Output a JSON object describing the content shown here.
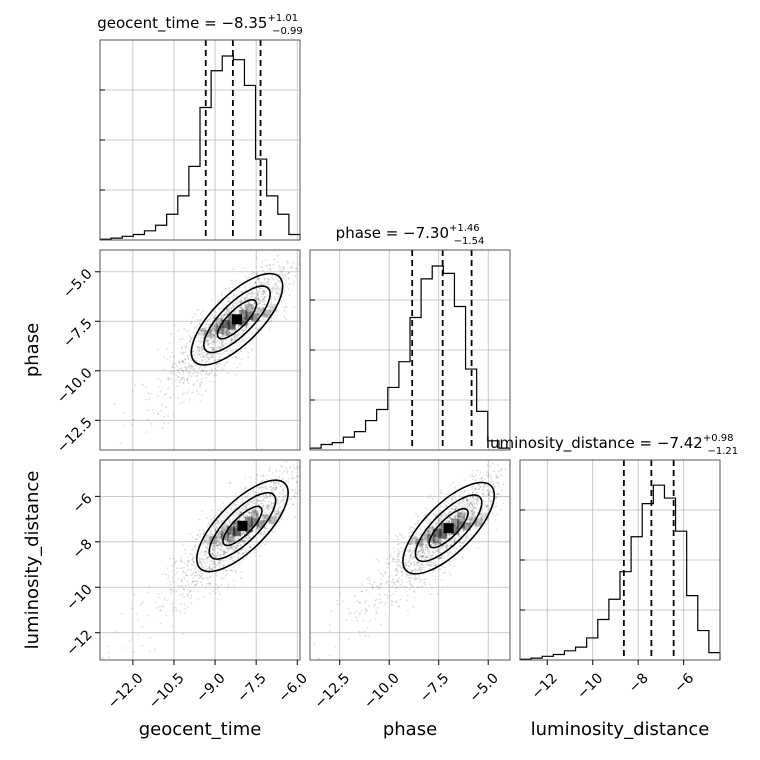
{
  "chart_data": {
    "type": "corner",
    "parameters": [
      {
        "name": "geocent_time",
        "median": -8.35,
        "plus": "+1.01",
        "minus": "−0.99",
        "median_label": "−8.35",
        "range": [
          -13.2,
          -5.9
        ],
        "q16": -9.34,
        "q84": -7.34,
        "ticks": [
          {
            "v": -12.0,
            "l": "−12.0"
          },
          {
            "v": -10.5,
            "l": "−10.5"
          },
          {
            "v": -9.0,
            "l": "−9.0"
          },
          {
            "v": -7.5,
            "l": "−7.5"
          },
          {
            "v": -6.0,
            "l": "−6.0"
          }
        ],
        "hist": [
          0.004,
          0.01,
          0.02,
          0.03,
          0.05,
          0.08,
          0.14,
          0.24,
          0.4,
          0.72,
          0.92,
          1.0,
          0.98,
          0.84,
          0.44,
          0.24,
          0.14,
          0.03
        ]
      },
      {
        "name": "phase",
        "median": -7.3,
        "plus": "+1.46",
        "minus": "−1.54",
        "median_label": "−7.30",
        "range": [
          -14.0,
          -3.9
        ],
        "q16": -8.84,
        "q84": -5.84,
        "ticks": [
          {
            "v": -12.5,
            "l": "−12.5"
          },
          {
            "v": -10.0,
            "l": "−10.0"
          },
          {
            "v": -7.5,
            "l": "−7.5"
          },
          {
            "v": -5.0,
            "l": "−5.0"
          }
        ],
        "hist": [
          0.01,
          0.03,
          0.04,
          0.07,
          0.1,
          0.16,
          0.22,
          0.34,
          0.48,
          0.72,
          0.93,
          1.0,
          0.96,
          0.78,
          0.44,
          0.21,
          0.05,
          0.01
        ]
      },
      {
        "name": "luminosity_distance",
        "median": -7.42,
        "plus": "+0.98",
        "minus": "−1.21",
        "median_label": "−7.42",
        "range": [
          -13.2,
          -4.4
        ],
        "q16": -8.63,
        "q84": -6.44,
        "ticks": [
          {
            "v": -12,
            "l": "−12"
          },
          {
            "v": -10,
            "l": "−10"
          },
          {
            "v": -8,
            "l": "−8"
          },
          {
            "v": -6,
            "l": "−6"
          }
        ],
        "hist": [
          0.004,
          0.01,
          0.02,
          0.03,
          0.05,
          0.07,
          0.12,
          0.22,
          0.33,
          0.48,
          0.67,
          0.85,
          0.95,
          0.88,
          0.7,
          0.35,
          0.16,
          0.04
        ]
      }
    ],
    "panels": [
      {
        "type": "scatter-density",
        "x": "geocent_time",
        "y": "phase",
        "center": [
          -8.2,
          -7.4
        ]
      },
      {
        "type": "scatter-density",
        "x": "geocent_time",
        "y": "luminosity_distance",
        "center": [
          -8.0,
          -7.3
        ]
      },
      {
        "type": "scatter-density",
        "x": "phase",
        "y": "luminosity_distance",
        "center": [
          -7.0,
          -7.4
        ]
      }
    ],
    "colors": {
      "hist": "#000000",
      "points": "#000000",
      "grid": "#bdbdbd"
    },
    "grid": true
  }
}
